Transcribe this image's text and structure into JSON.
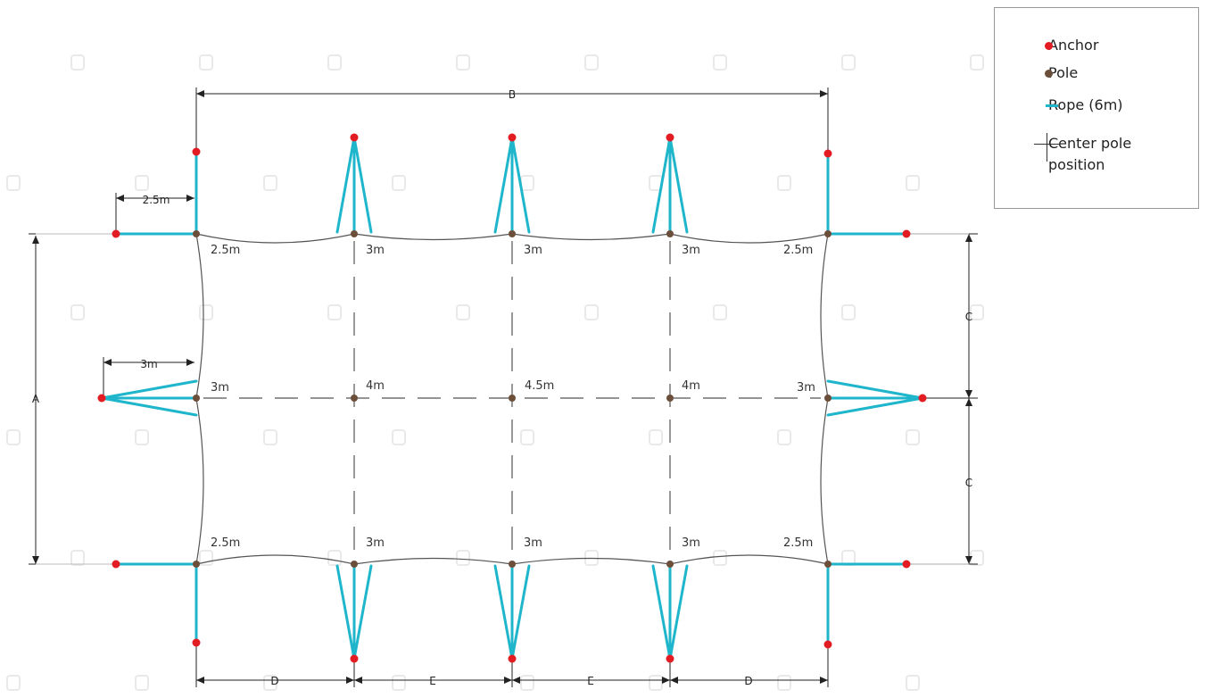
{
  "colors": {
    "anchor": "#e31c23",
    "pole": "#6b4f3a",
    "rope": "#1fb6cc",
    "frame": "#444444"
  },
  "legend": {
    "anchor": "Anchor",
    "pole": "Pole",
    "rope": "Rope (6m)",
    "center_line1": "Center pole",
    "center_line2": "position"
  },
  "dimensions": {
    "A": "A",
    "B": "B",
    "C_top": "C",
    "C_bottom": "C",
    "D_left": "D",
    "E_left": "E",
    "E_right": "E",
    "D_right": "D",
    "left_rope_top": "2.5m",
    "left_rope_mid": "3m"
  },
  "edge_labels": {
    "top": [
      "2.5m",
      "3m",
      "3m",
      "3m",
      "2.5m"
    ],
    "middle": [
      "3m",
      "4m",
      "4.5m",
      "4m",
      "3m"
    ],
    "bottom": [
      "2.5m",
      "3m",
      "3m",
      "3m",
      "2.5m"
    ]
  }
}
